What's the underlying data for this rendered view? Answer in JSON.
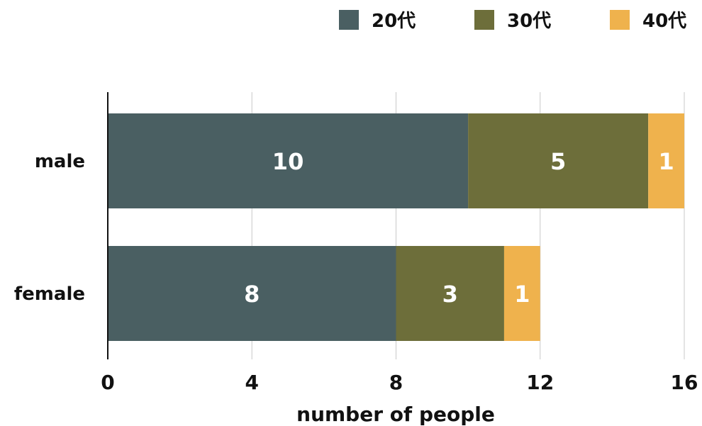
{
  "chart_data": {
    "type": "bar",
    "orientation": "horizontal",
    "stacked": true,
    "categories": [
      "male",
      "female"
    ],
    "series": [
      {
        "name": "20代",
        "values": [
          10,
          8
        ],
        "color": "#4a5f62"
      },
      {
        "name": "30代",
        "values": [
          5,
          3
        ],
        "color": "#6d6e3a"
      },
      {
        "name": "40代",
        "values": [
          1,
          1
        ],
        "color": "#efb24d"
      }
    ],
    "xlabel": "number of people",
    "ylabel": "",
    "xlim": [
      0,
      16
    ],
    "xticks": [
      "0",
      "4",
      "8",
      "12",
      "16"
    ],
    "grid": true,
    "legend": "top-right",
    "data_labels": true
  }
}
